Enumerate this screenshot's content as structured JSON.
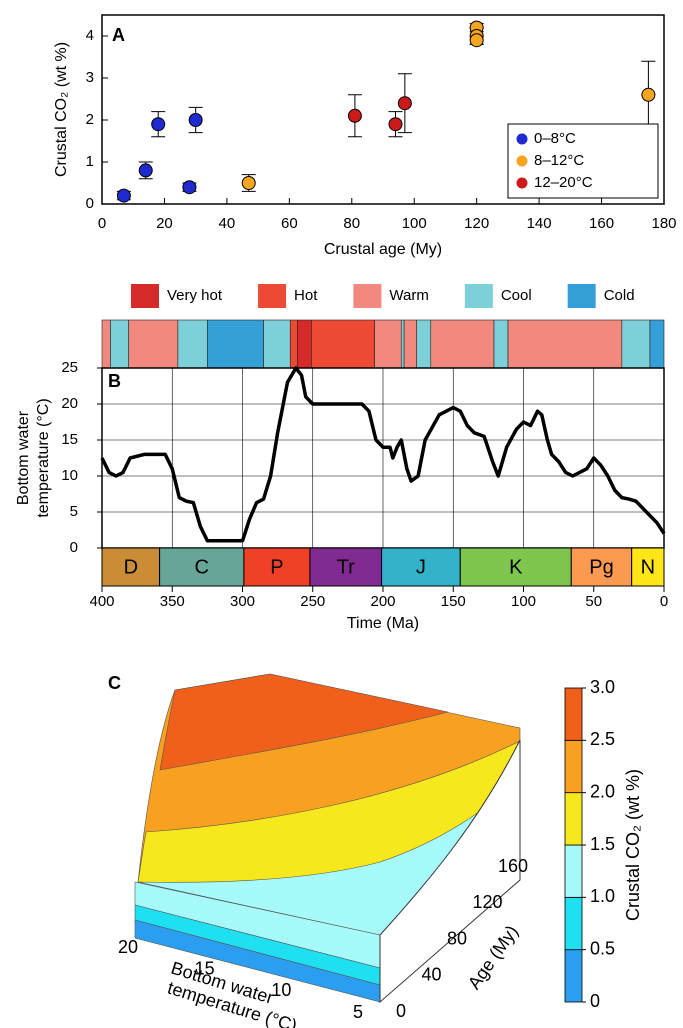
{
  "chart_data": [
    {
      "type": "scatter",
      "title": "A",
      "xlabel": "Crustal age (My)",
      "ylabel": "Crustal CO₂ (wt %)",
      "xlim": [
        0,
        180
      ],
      "xticks": [
        0,
        20,
        40,
        60,
        80,
        100,
        120,
        140,
        160,
        180
      ],
      "ylim": [
        0,
        4.5
      ],
      "yticks": [
        0,
        1,
        2,
        3,
        4
      ],
      "grid": false,
      "legend": "lower right",
      "series": [
        {
          "name": "0–8°C",
          "color": "#1f2bd1",
          "x": [
            7,
            14,
            18,
            28,
            30
          ],
          "values": [
            0.2,
            0.8,
            1.9,
            0.4,
            2.0
          ],
          "errors": [
            0.1,
            0.2,
            0.3,
            0.1,
            0.3
          ]
        },
        {
          "name": "8–12°C",
          "color": "#f5a51f",
          "x": [
            47,
            120,
            120,
            120,
            175
          ],
          "values": [
            0.5,
            4.2,
            4.0,
            3.9,
            2.6
          ],
          "errors": [
            0.2,
            0.1,
            0.2,
            0.1,
            0.8
          ]
        },
        {
          "name": "12–20°C",
          "color": "#cc1a1a",
          "x": [
            81,
            94,
            97
          ],
          "values": [
            2.1,
            1.9,
            2.4
          ],
          "errors": [
            0.5,
            0.3,
            0.7
          ]
        }
      ]
    },
    {
      "type": "line",
      "title": "B",
      "xlabel": "Time (Ma)",
      "ylabel": [
        "Bottom water",
        "temperature (°C)"
      ],
      "xlim": [
        400,
        0
      ],
      "xticks": [
        400,
        350,
        300,
        250,
        200,
        150,
        100,
        50,
        0
      ],
      "ylim": [
        0,
        25
      ],
      "yticks": [
        0,
        5,
        10,
        15,
        20,
        25
      ],
      "grid": true,
      "color": "#000000",
      "x": [
        400,
        395,
        390,
        385,
        380,
        370,
        355,
        350,
        345,
        340,
        335,
        330,
        325,
        310,
        300,
        295,
        290,
        285,
        280,
        275,
        268,
        262,
        258,
        255,
        250,
        240,
        215,
        210,
        205,
        200,
        195,
        193,
        190,
        187,
        183,
        180,
        175,
        170,
        160,
        150,
        145,
        140,
        135,
        128,
        122,
        118,
        112,
        105,
        100,
        95,
        90,
        87,
        83,
        80,
        75,
        70,
        65,
        60,
        55,
        50,
        45,
        40,
        35,
        30,
        25,
        20,
        15,
        10,
        5,
        0
      ],
      "values": [
        12.5,
        10.5,
        10,
        10.5,
        12.5,
        13,
        13,
        11,
        7,
        6.5,
        6.3,
        3,
        1,
        1,
        1,
        4,
        6.3,
        6.8,
        10,
        16,
        23,
        25,
        24,
        21,
        20,
        20,
        20,
        19,
        15,
        14,
        14,
        12.5,
        14,
        15,
        11,
        9.3,
        10,
        15,
        18.5,
        19.5,
        19,
        17,
        16,
        15.5,
        12,
        10,
        14,
        16.5,
        17.5,
        17,
        19,
        18.5,
        15,
        13,
        12,
        10.5,
        10,
        10.5,
        11,
        12.5,
        11.5,
        10,
        8,
        7,
        6.8,
        6.5,
        5.5,
        4.5,
        3.5,
        2
      ],
      "climate_states": [
        {
          "name": "Very hot",
          "color": "#d42a2a"
        },
        {
          "name": "Hot",
          "color": "#ec4a32"
        },
        {
          "name": "Warm",
          "color": "#f2897e"
        },
        {
          "name": "Cool",
          "color": "#7dcfd8"
        },
        {
          "name": "Cold",
          "color": "#35a0d8"
        }
      ],
      "climate_bands": [
        {
          "from": 400,
          "to": 394,
          "state": "Warm"
        },
        {
          "from": 394,
          "to": 381,
          "state": "Cool"
        },
        {
          "from": 381,
          "to": 346,
          "state": "Warm"
        },
        {
          "from": 346,
          "to": 325,
          "state": "Cool"
        },
        {
          "from": 325,
          "to": 285,
          "state": "Cold"
        },
        {
          "from": 285,
          "to": 266,
          "state": "Cool"
        },
        {
          "from": 266,
          "to": 261,
          "state": "Hot"
        },
        {
          "from": 261,
          "to": 251,
          "state": "Very hot"
        },
        {
          "from": 251,
          "to": 206,
          "state": "Hot"
        },
        {
          "from": 206,
          "to": 187,
          "state": "Warm"
        },
        {
          "from": 187,
          "to": 185,
          "state": "Cool"
        },
        {
          "from": 185,
          "to": 176,
          "state": "Warm"
        },
        {
          "from": 176,
          "to": 166,
          "state": "Cool"
        },
        {
          "from": 166,
          "to": 121,
          "state": "Warm"
        },
        {
          "from": 121,
          "to": 111,
          "state": "Cool"
        },
        {
          "from": 111,
          "to": 30,
          "state": "Warm"
        },
        {
          "from": 30,
          "to": 10,
          "state": "Cool"
        },
        {
          "from": 10,
          "to": 0,
          "state": "Cold"
        }
      ],
      "periods": [
        {
          "label": "D",
          "from": 400,
          "to": 359,
          "color": "#cb8c37"
        },
        {
          "label": "C",
          "from": 359,
          "to": 299,
          "color": "#67a599"
        },
        {
          "label": "P",
          "from": 299,
          "to": 252,
          "color": "#f04028"
        },
        {
          "label": "Tr",
          "from": 252,
          "to": 201,
          "color": "#812b92"
        },
        {
          "label": "J",
          "from": 201,
          "to": 145,
          "color": "#34b2c9"
        },
        {
          "label": "K",
          "from": 145,
          "to": 66,
          "color": "#7fc64e"
        },
        {
          "label": "Pg",
          "from": 66,
          "to": 23,
          "color": "#fd9a52"
        },
        {
          "label": "N",
          "from": 23,
          "to": 0,
          "color": "#ffe619"
        }
      ]
    },
    {
      "type": "surface",
      "title": "C",
      "xlabel": [
        "Bottom water",
        "temperature (°C)"
      ],
      "ylabel": "Age (My)",
      "xlim": [
        20,
        5
      ],
      "xticks": [
        20,
        15,
        10,
        5
      ],
      "ylim": [
        0,
        160
      ],
      "yticks": [
        0,
        40,
        80,
        120,
        160
      ],
      "colorbar": {
        "label": "Crustal CO₂ (wt %)",
        "lim": [
          0,
          3
        ],
        "ticks": [
          0,
          0.5,
          {
            "value": 1,
            "label": "1.0"
          },
          1.5,
          {
            "value": 2,
            "label": "2.0"
          },
          2.5,
          {
            "value": 3,
            "label": "3.0"
          }
        ],
        "colors": [
          "#2b9ef0",
          "#1fe0f0",
          "#a6fafa",
          "#f7e81e",
          "#f8a01f",
          "#f0601a"
        ]
      }
    }
  ]
}
